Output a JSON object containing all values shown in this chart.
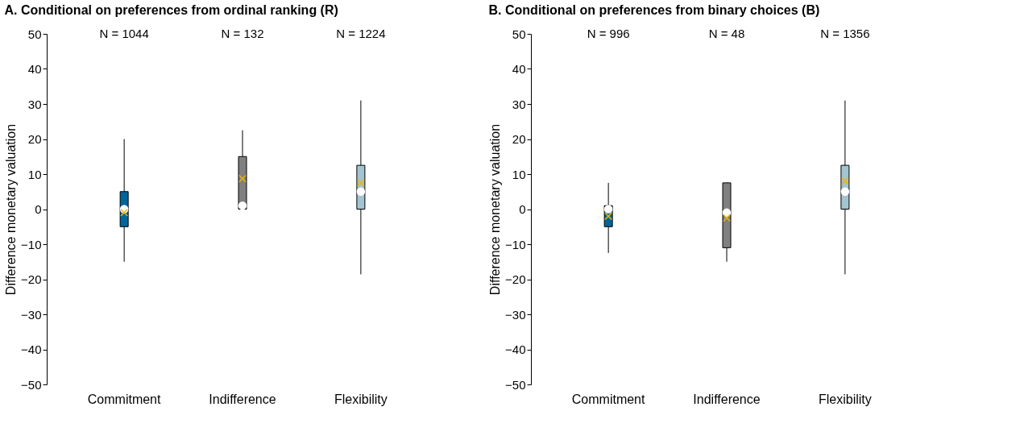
{
  "chart_data": [
    {
      "type": "box",
      "title": "A. Conditional on preferences from ordinal ranking (R)",
      "ylabel": "Difference monetary valuation",
      "categories": [
        "Commitment",
        "Indifference",
        "Flexibility"
      ],
      "ylim": [
        -50,
        50
      ],
      "yticks": [
        -50,
        -40,
        -30,
        -20,
        -10,
        0,
        10,
        20,
        30,
        40,
        50
      ],
      "grid": false,
      "colors": [
        "#006699",
        "#808080",
        "#a3c4d1"
      ],
      "boxes": [
        {
          "low": -15,
          "q1": -5,
          "median": 0,
          "q3": 5,
          "high": 20,
          "mean": -1
        },
        {
          "low": 0,
          "q1": 0,
          "median": 1,
          "q3": 15,
          "high": 22.5,
          "mean": 8.7
        },
        {
          "low": -18.6,
          "q1": 0,
          "median": 5,
          "q3": 12.5,
          "high": 31,
          "mean": 7.5
        }
      ],
      "annotations": [
        "N = 1044",
        "N = 132",
        "N = 1224"
      ]
    },
    {
      "type": "box",
      "title": "B. Conditional on preferences from binary choices (B)",
      "ylabel": "Difference monetary valuation",
      "categories": [
        "Commitment",
        "Indifference",
        "Flexibility"
      ],
      "ylim": [
        -50,
        50
      ],
      "yticks": [
        -50,
        -40,
        -30,
        -20,
        -10,
        0,
        10,
        20,
        30,
        40,
        50
      ],
      "grid": false,
      "colors": [
        "#006699",
        "#808080",
        "#a3c4d1"
      ],
      "boxes": [
        {
          "low": -12.5,
          "q1": -5,
          "median": 0,
          "q3": 1,
          "high": 7.5,
          "mean": -2
        },
        {
          "low": -15,
          "q1": -11,
          "median": -1,
          "q3": 7.5,
          "high": 7.5,
          "mean": -2.5
        },
        {
          "low": -18.6,
          "q1": 0,
          "median": 5,
          "q3": 12.5,
          "high": 31,
          "mean": 8
        }
      ],
      "annotations": [
        "N = 996",
        "N = 48",
        "N = 1356"
      ]
    }
  ]
}
